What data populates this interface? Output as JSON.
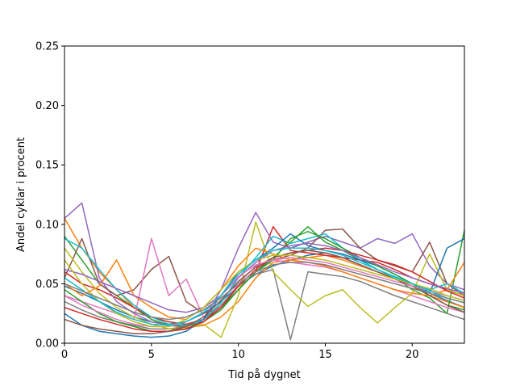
{
  "chart_data": {
    "type": "line",
    "title": "",
    "xlabel": "Tid på dygnet",
    "ylabel": "Andel cyklar i procent",
    "xlim": [
      0,
      23
    ],
    "ylim": [
      0,
      0.25
    ],
    "xticks": [
      0,
      5,
      10,
      15,
      20
    ],
    "xtick_labels": [
      "0",
      "5",
      "10",
      "15",
      "20"
    ],
    "yticks": [
      0,
      0.05,
      0.1,
      0.15,
      0.2,
      0.25
    ],
    "ytick_labels": [
      "0.00",
      "0.05",
      "0.10",
      "0.15",
      "0.20",
      "0.25"
    ],
    "grid": false,
    "legend": "none",
    "x": [
      0,
      1,
      2,
      3,
      4,
      5,
      6,
      7,
      8,
      9,
      10,
      11,
      12,
      13,
      14,
      15,
      16,
      17,
      18,
      19,
      20,
      21,
      22,
      23
    ],
    "series": [
      {
        "color": "#1f77b4",
        "values": [
          0.048,
          0.042,
          0.035,
          0.028,
          0.022,
          0.018,
          0.016,
          0.018,
          0.025,
          0.035,
          0.048,
          0.058,
          0.065,
          0.07,
          0.074,
          0.076,
          0.072,
          0.066,
          0.06,
          0.055,
          0.05,
          0.042,
          0.036,
          0.03
        ]
      },
      {
        "color": "#ff7f0e",
        "values": [
          0.105,
          0.08,
          0.06,
          0.045,
          0.03,
          0.02,
          0.015,
          0.013,
          0.015,
          0.022,
          0.035,
          0.055,
          0.068,
          0.07,
          0.072,
          0.074,
          0.07,
          0.065,
          0.06,
          0.055,
          0.048,
          0.04,
          0.035,
          0.03
        ]
      },
      {
        "color": "#2ca02c",
        "values": [
          0.09,
          0.07,
          0.05,
          0.04,
          0.03,
          0.02,
          0.015,
          0.014,
          0.018,
          0.028,
          0.045,
          0.06,
          0.072,
          0.085,
          0.098,
          0.085,
          0.078,
          0.07,
          0.062,
          0.055,
          0.045,
          0.038,
          0.025,
          0.095
        ]
      },
      {
        "color": "#d62728",
        "values": [
          0.06,
          0.05,
          0.045,
          0.038,
          0.03,
          0.022,
          0.018,
          0.016,
          0.02,
          0.03,
          0.045,
          0.06,
          0.098,
          0.078,
          0.076,
          0.074,
          0.072,
          0.07,
          0.068,
          0.062,
          0.055,
          0.05,
          0.045,
          0.04
        ]
      },
      {
        "color": "#9467bd",
        "values": [
          0.105,
          0.118,
          0.055,
          0.035,
          0.025,
          0.018,
          0.015,
          0.015,
          0.02,
          0.045,
          0.08,
          0.11,
          0.085,
          0.08,
          0.085,
          0.09,
          0.085,
          0.08,
          0.088,
          0.084,
          0.092,
          0.065,
          0.05,
          0.045
        ]
      },
      {
        "color": "#8c564b",
        "values": [
          0.055,
          0.088,
          0.05,
          0.04,
          0.045,
          0.062,
          0.073,
          0.035,
          0.025,
          0.03,
          0.045,
          0.06,
          0.07,
          0.074,
          0.08,
          0.095,
          0.096,
          0.08,
          0.07,
          0.065,
          0.06,
          0.085,
          0.05,
          0.04
        ]
      },
      {
        "color": "#e377c2",
        "values": [
          0.04,
          0.035,
          0.03,
          0.025,
          0.02,
          0.088,
          0.04,
          0.054,
          0.022,
          0.03,
          0.05,
          0.065,
          0.07,
          0.068,
          0.066,
          0.064,
          0.06,
          0.055,
          0.05,
          0.045,
          0.04,
          0.035,
          0.03,
          0.026
        ]
      },
      {
        "color": "#7f7f7f",
        "values": [
          0.035,
          0.028,
          0.022,
          0.018,
          0.015,
          0.012,
          0.012,
          0.014,
          0.02,
          0.032,
          0.048,
          0.058,
          0.062,
          0.003,
          0.06,
          0.058,
          0.056,
          0.052,
          0.046,
          0.04,
          0.035,
          0.03,
          0.025,
          0.02
        ]
      },
      {
        "color": "#bcbd22",
        "values": [
          0.08,
          0.06,
          0.042,
          0.03,
          0.022,
          0.016,
          0.012,
          0.012,
          0.016,
          0.005,
          0.04,
          0.102,
          0.06,
          0.045,
          0.031,
          0.04,
          0.045,
          0.03,
          0.017,
          0.03,
          0.042,
          0.075,
          0.045,
          0.04
        ]
      },
      {
        "color": "#17becf",
        "values": [
          0.088,
          0.08,
          0.062,
          0.045,
          0.032,
          0.022,
          0.016,
          0.015,
          0.02,
          0.034,
          0.055,
          0.072,
          0.09,
          0.084,
          0.088,
          0.092,
          0.08,
          0.07,
          0.062,
          0.055,
          0.05,
          0.045,
          0.05,
          0.042
        ]
      },
      {
        "color": "#1f77b4",
        "values": [
          0.025,
          0.015,
          0.01,
          0.008,
          0.006,
          0.005,
          0.006,
          0.01,
          0.02,
          0.04,
          0.06,
          0.07,
          0.08,
          0.092,
          0.082,
          0.078,
          0.075,
          0.07,
          0.065,
          0.058,
          0.05,
          0.042,
          0.08,
          0.088
        ]
      },
      {
        "color": "#ff7f0e",
        "values": [
          0.05,
          0.04,
          0.048,
          0.07,
          0.04,
          0.03,
          0.022,
          0.02,
          0.03,
          0.045,
          0.065,
          0.08,
          0.075,
          0.07,
          0.068,
          0.065,
          0.06,
          0.055,
          0.05,
          0.045,
          0.042,
          0.04,
          0.045,
          0.068
        ]
      },
      {
        "color": "#2ca02c",
        "values": [
          0.045,
          0.035,
          0.025,
          0.018,
          0.014,
          0.01,
          0.01,
          0.012,
          0.018,
          0.03,
          0.045,
          0.06,
          0.07,
          0.088,
          0.094,
          0.088,
          0.08,
          0.072,
          0.065,
          0.058,
          0.05,
          0.04,
          0.032,
          0.028
        ]
      },
      {
        "color": "#d62728",
        "values": [
          0.03,
          0.025,
          0.02,
          0.016,
          0.012,
          0.01,
          0.01,
          0.012,
          0.018,
          0.03,
          0.048,
          0.062,
          0.072,
          0.076,
          0.078,
          0.08,
          0.078,
          0.074,
          0.07,
          0.066,
          0.06,
          0.052,
          0.044,
          0.038
        ]
      },
      {
        "color": "#9467bd",
        "values": [
          0.062,
          0.058,
          0.052,
          0.046,
          0.04,
          0.034,
          0.028,
          0.026,
          0.03,
          0.04,
          0.055,
          0.068,
          0.078,
          0.082,
          0.084,
          0.082,
          0.078,
          0.072,
          0.066,
          0.06,
          0.055,
          0.05,
          0.046,
          0.042
        ]
      },
      {
        "color": "#8c564b",
        "values": [
          0.02,
          0.015,
          0.012,
          0.01,
          0.008,
          0.008,
          0.01,
          0.014,
          0.022,
          0.036,
          0.052,
          0.064,
          0.072,
          0.076,
          0.078,
          0.076,
          0.072,
          0.066,
          0.06,
          0.054,
          0.048,
          0.04,
          0.032,
          0.026
        ]
      },
      {
        "color": "#e377c2",
        "values": [
          0.04,
          0.032,
          0.026,
          0.02,
          0.016,
          0.014,
          0.014,
          0.018,
          0.026,
          0.04,
          0.056,
          0.066,
          0.07,
          0.072,
          0.07,
          0.068,
          0.064,
          0.06,
          0.056,
          0.052,
          0.048,
          0.044,
          0.04,
          0.036
        ]
      },
      {
        "color": "#bcbd22",
        "values": [
          0.07,
          0.05,
          0.035,
          0.025,
          0.018,
          0.014,
          0.014,
          0.02,
          0.03,
          0.045,
          0.06,
          0.07,
          0.074,
          0.074,
          0.072,
          0.07,
          0.066,
          0.062,
          0.058,
          0.054,
          0.05,
          0.046,
          0.04,
          0.036
        ]
      },
      {
        "color": "#17becf",
        "values": [
          0.055,
          0.045,
          0.035,
          0.026,
          0.02,
          0.016,
          0.015,
          0.018,
          0.026,
          0.04,
          0.058,
          0.07,
          0.078,
          0.08,
          0.08,
          0.078,
          0.074,
          0.068,
          0.062,
          0.056,
          0.05,
          0.044,
          0.038,
          0.034
        ]
      },
      {
        "color": "#7f7f7f",
        "values": [
          0.05,
          0.044,
          0.038,
          0.032,
          0.026,
          0.022,
          0.02,
          0.022,
          0.028,
          0.038,
          0.05,
          0.06,
          0.066,
          0.068,
          0.068,
          0.066,
          0.062,
          0.058,
          0.054,
          0.05,
          0.046,
          0.042,
          0.038,
          0.034
        ]
      }
    ]
  }
}
